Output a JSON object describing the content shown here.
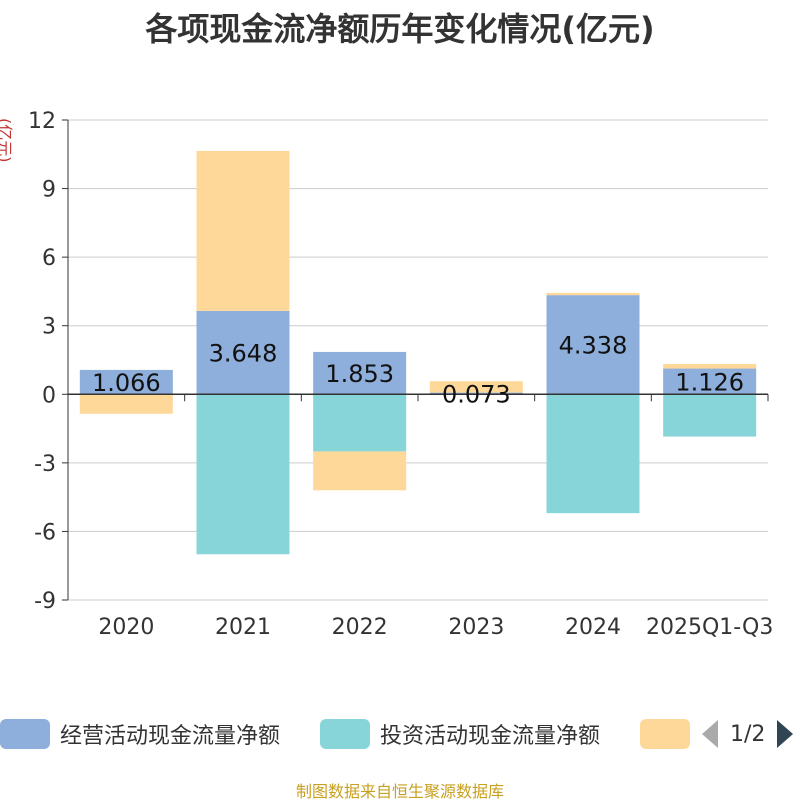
{
  "chart_data": {
    "type": "bar",
    "stacked": true,
    "title": "各项现金流净额历年变化情况(亿元)",
    "ylabel": "(亿元)",
    "categories": [
      "2020",
      "2021",
      "2022",
      "2023",
      "2024",
      "2025Q1-Q3"
    ],
    "ylim": [
      -9,
      12
    ],
    "yticks": [
      12,
      9,
      6,
      3,
      0,
      -3,
      -6,
      -9
    ],
    "grid": true,
    "series": [
      {
        "name": "经营活动现金流量净额",
        "color": "#8eaedb",
        "values": [
          1.066,
          3.648,
          1.853,
          0.073,
          4.338,
          1.126
        ],
        "labels": [
          "1.066",
          "3.648",
          "1.853",
          "0.073",
          "4.338",
          "1.126"
        ]
      },
      {
        "name": "投资活动现金流量净额",
        "color": "#88d5d9",
        "values": [
          0,
          -7.0,
          -2.5,
          0,
          -5.2,
          -1.85
        ]
      },
      {
        "name": "",
        "color": "#fed899",
        "values": [
          -0.85,
          7.0,
          -1.7,
          0.5,
          0.1,
          0.2
        ]
      }
    ]
  },
  "legend": {
    "items": [
      {
        "label": "经营活动现金流量净额",
        "color": "#8eaedb"
      },
      {
        "label": "投资活动现金流量净额",
        "color": "#88d5d9"
      },
      {
        "label": "",
        "color": "#fed899"
      }
    ],
    "page": "1/2"
  },
  "source": "制图数据来自恒生聚源数据库"
}
